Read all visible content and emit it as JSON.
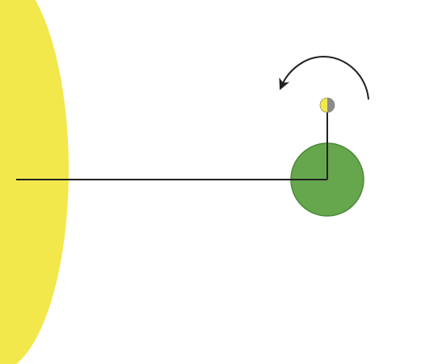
{
  "colors": {
    "sun": "#F2E84B",
    "earth": "#66A64D",
    "earth_stroke": "#4E8A3A",
    "moon_lit": "#F2E84B",
    "moon_dark": "#8C8C8C",
    "line": "#222222",
    "background": "#FFFFFF"
  },
  "objects": {
    "sun": "sun",
    "earth": "earth",
    "moon": "moon"
  },
  "icons": {
    "orbit_arrow": "curved-arrow-counterclockwise-icon"
  }
}
